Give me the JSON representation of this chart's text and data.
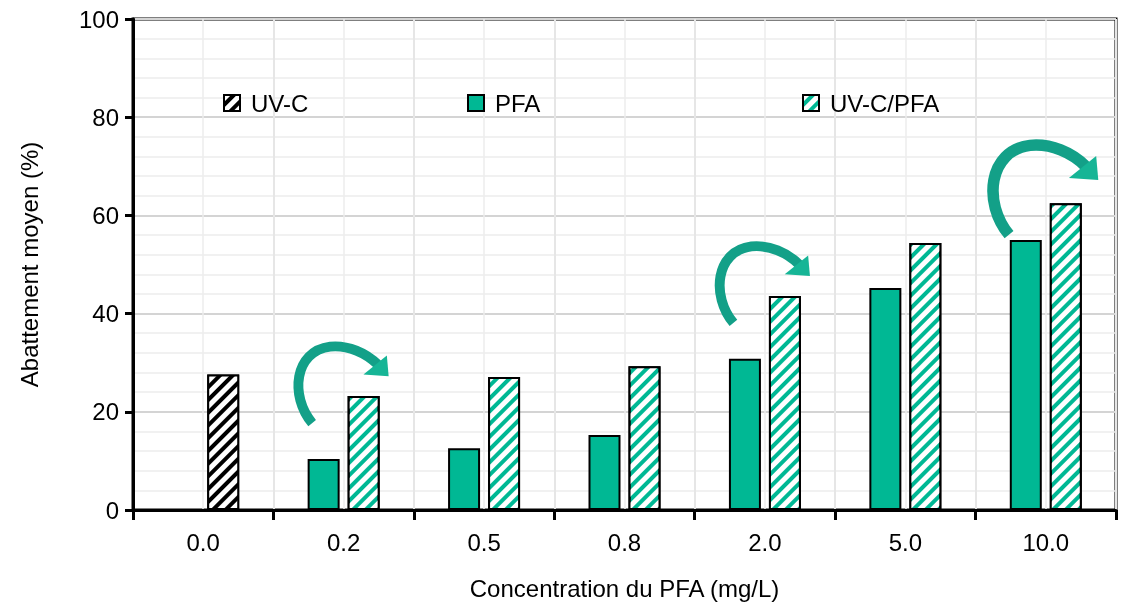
{
  "chart_data": {
    "type": "bar",
    "xlabel": "Concentration du PFA (mg/L)",
    "ylabel": "Abattement moyen (%)",
    "categories": [
      "0.0",
      "0.2",
      "0.5",
      "0.8",
      "2.0",
      "5.0",
      "10.0"
    ],
    "series": [
      {
        "name": "UV-C",
        "color": "#000000",
        "values": [
          27.6,
          null,
          null,
          null,
          null,
          null,
          null
        ]
      },
      {
        "name": "PFA",
        "color": "#00b894",
        "values": [
          null,
          10.4,
          12.6,
          15.3,
          30.8,
          45.2,
          55.0
        ]
      },
      {
        "name": "UV-C/PFA",
        "color": "#00b894",
        "values": [
          null,
          23.2,
          27.1,
          29.3,
          43.6,
          54.4,
          62.5
        ]
      }
    ],
    "ylim": [
      0,
      100
    ],
    "yticks": [
      0,
      20,
      40,
      60,
      80,
      100
    ],
    "grid": true,
    "legend": "top"
  }
}
